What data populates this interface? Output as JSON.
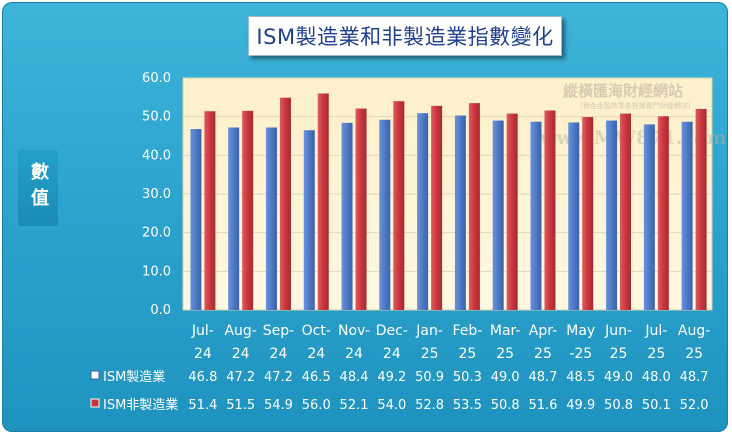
{
  "title": "ISM製造業和非製造業指數變化",
  "ylabel": "數值",
  "watermark": {
    "name": "縱橫匯海財經網站",
    "sub": "(資金金融商業各數據專門財經網站)",
    "url": "www.MW871.com"
  },
  "colors": {
    "frame": "#2ea6d0",
    "plot_bg": "#fdf3d3",
    "manufacturing": "#4f79c6",
    "non_manufacturing": "#c8373d"
  },
  "chart_data": {
    "type": "bar",
    "title": "ISM製造業和非製造業指數變化",
    "ylabel": "數值",
    "ylim": [
      0,
      60
    ],
    "yticks": [
      "0.0",
      "10.0",
      "20.0",
      "30.0",
      "40.0",
      "50.0",
      "60.0"
    ],
    "grid": true,
    "categories": [
      [
        "Jul-",
        "24"
      ],
      [
        "Aug-",
        "24"
      ],
      [
        "Sep-",
        "24"
      ],
      [
        "Oct-",
        "24"
      ],
      [
        "Nov-",
        "24"
      ],
      [
        "Dec-",
        "24"
      ],
      [
        "Jan-",
        "25"
      ],
      [
        "Feb-",
        "25"
      ],
      [
        "Mar-",
        "25"
      ],
      [
        "Apr-",
        "25"
      ],
      [
        "May",
        "-25"
      ],
      [
        "Jun-",
        "25"
      ],
      [
        "Jul-",
        "25"
      ],
      [
        "Aug-",
        "25"
      ]
    ],
    "series": [
      {
        "name": "ISM製造業",
        "color": "#4f79c6",
        "values": [
          46.8,
          47.2,
          47.2,
          46.5,
          48.4,
          49.2,
          50.9,
          50.3,
          49.0,
          48.7,
          48.5,
          49.0,
          48.0,
          48.7
        ],
        "labels": [
          "46.8",
          "47.2",
          "47.2",
          "46.5",
          "48.4",
          "49.2",
          "50.9",
          "50.3",
          "49.0",
          "48.7",
          "48.5",
          "49.0",
          "48.0",
          "48.7"
        ]
      },
      {
        "name": "ISM非製造業",
        "color": "#c8373d",
        "values": [
          51.4,
          51.5,
          54.9,
          56.0,
          52.1,
          54.0,
          52.8,
          53.5,
          50.8,
          51.6,
          49.9,
          50.8,
          50.1,
          52.0
        ],
        "labels": [
          "51.4",
          "51.5",
          "54.9",
          "56.0",
          "52.1",
          "54.0",
          "52.8",
          "53.5",
          "50.8",
          "51.6",
          "49.9",
          "50.8",
          "50.1",
          "52.0"
        ]
      }
    ]
  }
}
